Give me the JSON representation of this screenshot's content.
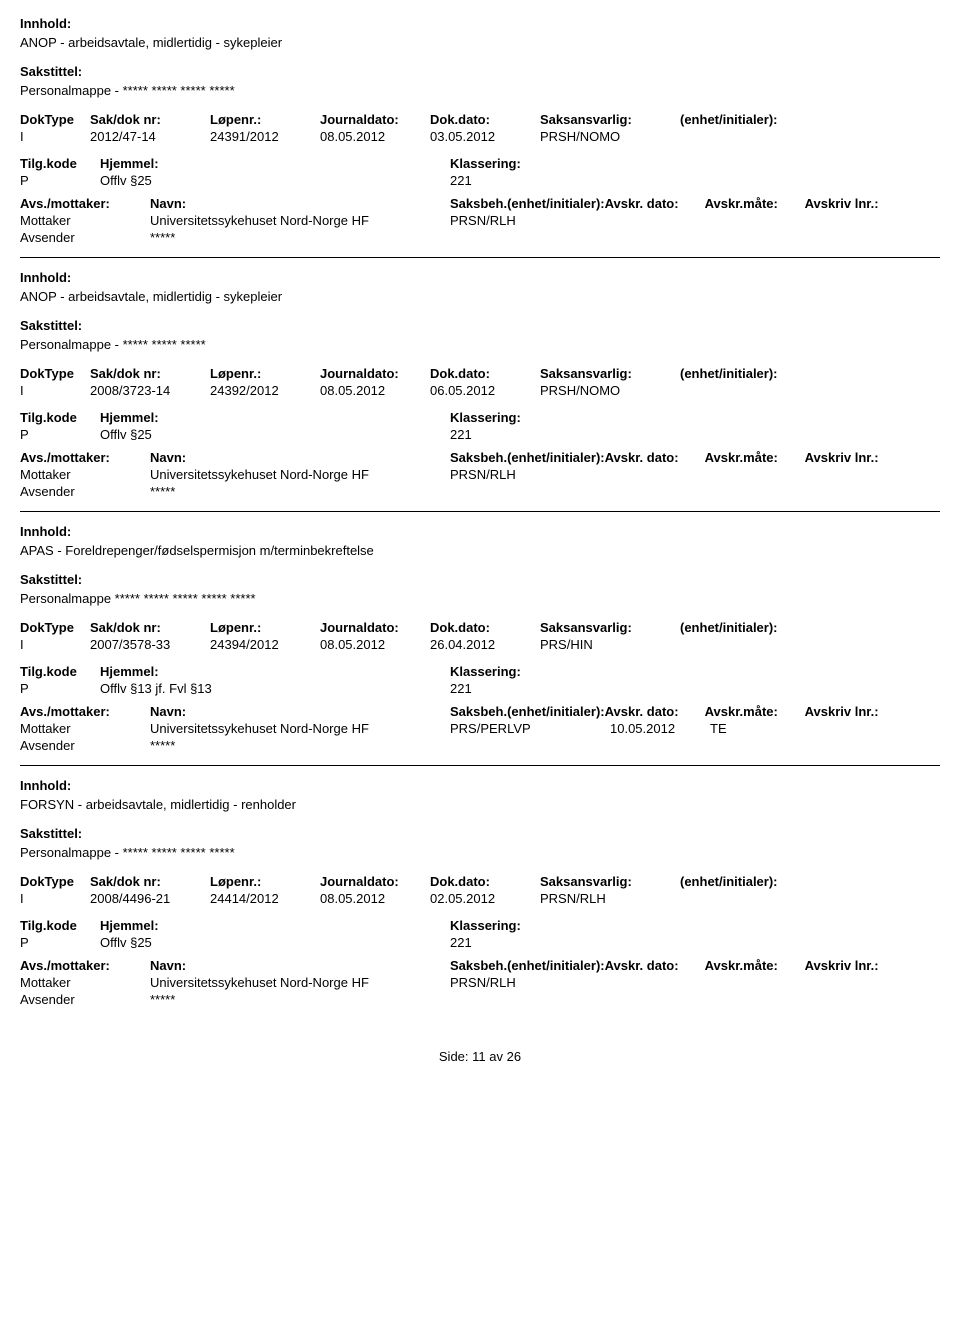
{
  "labels": {
    "innhold": "Innhold:",
    "sakstittel": "Sakstittel:",
    "doktype": "DokType",
    "sakdoknr": "Sak/dok nr:",
    "lopenr": "Løpenr.:",
    "journaldato": "Journaldato:",
    "dokdato": "Dok.dato:",
    "saksansvarlig": "Saksansvarlig:",
    "enhet": "(enhet/initialer):",
    "tilgkode": "Tilg.kode",
    "hjemmel": "Hjemmel:",
    "klassering": "Klassering:",
    "avsmottaker": "Avs./mottaker:",
    "navn": "Navn:",
    "saksbeh": "Saksbeh.",
    "enhet2": "(enhet/initialer):",
    "avskrdato": "Avskr. dato:",
    "avskrmate": "Avskr.måte:",
    "avskrlnr": "Avskriv lnr.:",
    "mottaker": "Mottaker",
    "avsender": "Avsender"
  },
  "records": [
    {
      "innhold": "ANOP - arbeidsavtale, midlertidig - sykepleier",
      "sakstittel": "Personalmappe - ***** *****  ***** *****",
      "doktype": "I",
      "sakdoknr": "2012/47-14",
      "lopenr": "24391/2012",
      "journaldato": "08.05.2012",
      "dokdato": "03.05.2012",
      "saksansvarlig": "PRSH/NOMO",
      "tilgkode": "P",
      "hjemmel": "Offlv §25",
      "klassering": "221",
      "mottaker_navn": "Universitetssykehuset Nord-Norge HF",
      "saksbeh": "PRSN/RLH",
      "avskrdato": "",
      "avskrmate": "",
      "avsender_navn": "*****"
    },
    {
      "innhold": "ANOP - arbeidsavtale, midlertidig - sykepleier",
      "sakstittel": "Personalmappe - ***** ***** *****",
      "doktype": "I",
      "sakdoknr": "2008/3723-14",
      "lopenr": "24392/2012",
      "journaldato": "08.05.2012",
      "dokdato": "06.05.2012",
      "saksansvarlig": "PRSH/NOMO",
      "tilgkode": "P",
      "hjemmel": "Offlv §25",
      "klassering": "221",
      "mottaker_navn": "Universitetssykehuset Nord-Norge HF",
      "saksbeh": "PRSN/RLH",
      "avskrdato": "",
      "avskrmate": "",
      "avsender_navn": "*****"
    },
    {
      "innhold": "APAS - Foreldrepenger/fødselspermisjon m/terminbekreftelse",
      "sakstittel": "Personalmappe ***** ***** ***** ***** *****",
      "doktype": "I",
      "sakdoknr": "2007/3578-33",
      "lopenr": "24394/2012",
      "journaldato": "08.05.2012",
      "dokdato": "26.04.2012",
      "saksansvarlig": "PRS/HIN",
      "tilgkode": "P",
      "hjemmel": "Offlv §13 jf. Fvl §13",
      "klassering": "221",
      "mottaker_navn": "Universitetssykehuset Nord-Norge HF",
      "saksbeh": "PRS/PERLVP",
      "avskrdato": "10.05.2012",
      "avskrmate": "TE",
      "avsender_navn": "*****"
    },
    {
      "innhold": "FORSYN - arbeidsavtale, midlertidig - renholder",
      "sakstittel": "Personalmappe - ***** ***** ***** *****",
      "doktype": "I",
      "sakdoknr": "2008/4496-21",
      "lopenr": "24414/2012",
      "journaldato": "08.05.2012",
      "dokdato": "02.05.2012",
      "saksansvarlig": "PRSN/RLH",
      "tilgkode": "P",
      "hjemmel": "Offlv §25",
      "klassering": "221",
      "mottaker_navn": "Universitetssykehuset Nord-Norge HF",
      "saksbeh": "PRSN/RLH",
      "avskrdato": "",
      "avskrmate": "",
      "avsender_navn": "*****"
    }
  ],
  "footer": {
    "side": "Side:",
    "page": "11",
    "av": "av",
    "total": "26"
  }
}
